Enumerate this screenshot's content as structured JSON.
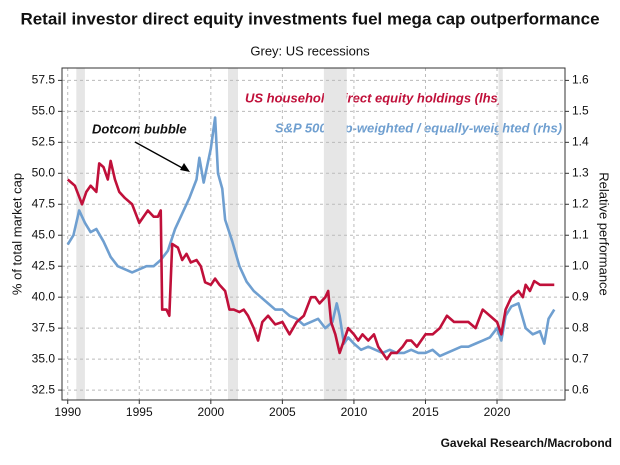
{
  "chart_data": {
    "type": "line",
    "title": "Retail investor direct equity investments fuel mega cap outperformance",
    "subtitle": "Grey: US recessions",
    "source": "Gavekal Research/Macrobond",
    "ylabel": "% of total market cap",
    "y2label": "Relative performance",
    "annotations": [
      {
        "text": "Dotcom bubble"
      }
    ],
    "grid": true,
    "recession_color": "#e6e6e6",
    "recessions": [
      [
        1990.6,
        1991.2
      ],
      [
        2001.2,
        2001.9
      ],
      [
        2007.9,
        2009.5
      ],
      [
        2020.1,
        2020.4
      ]
    ],
    "xlim": [
      1989.6,
      2024.75
    ],
    "xticks": [
      1990,
      1995,
      2000,
      2005,
      2010,
      2015,
      2020
    ],
    "ylim": [
      31.7,
      58.5
    ],
    "yticks": [
      {
        "value": 32.5,
        "label": "32.5"
      },
      {
        "value": 35,
        "label": "35.0"
      },
      37.5,
      {
        "value": 40,
        "label": "40.0"
      },
      42.5,
      {
        "value": 45,
        "label": "45.0"
      },
      47.5,
      {
        "value": 50,
        "label": "50.0"
      },
      52.5,
      {
        "value": 55,
        "label": "55.0"
      },
      57.5
    ],
    "y2lim": [
      0.568,
      1.64
    ],
    "y2ticks": [
      0.6,
      0.7,
      0.8,
      0.9,
      {
        "value": 1,
        "label": "1.0"
      },
      1.1,
      1.2,
      1.3,
      1.4,
      1.5,
      1.6
    ],
    "series": [
      {
        "name": "US household direct equity holdings (lhs)",
        "color": "#c0103a",
        "axis": "y",
        "x": [
          1990,
          1990.5,
          1991,
          1991.3,
          1991.6,
          1992,
          1992.2,
          1992.5,
          1992.8,
          1993,
          1993.3,
          1993.6,
          1994,
          1994.5,
          1995,
          1995.3,
          1995.6,
          1996,
          1996.3,
          1996.5,
          1996.6,
          1996.9,
          1997.1,
          1997.3,
          1997.7,
          1998,
          1998.3,
          1998.6,
          1999,
          1999.3,
          1999.6,
          2000,
          2000.3,
          2000.6,
          2001,
          2001.3,
          2001.6,
          2002,
          2002.3,
          2002.6,
          2003,
          2003.3,
          2003.6,
          2004,
          2004.5,
          2005,
          2005.5,
          2006,
          2006.5,
          2007,
          2007.3,
          2007.6,
          2008,
          2008.2,
          2008.4,
          2008.7,
          2009,
          2009.3,
          2009.6,
          2010,
          2010.3,
          2010.6,
          2011,
          2011.4,
          2011.7,
          2012,
          2012.3,
          2012.6,
          2013,
          2013.4,
          2013.7,
          2014,
          2014.4,
          2014.7,
          2015,
          2015.5,
          2016,
          2016.5,
          2017,
          2017.5,
          2018,
          2018.5,
          2019,
          2019.5,
          2020,
          2020.3,
          2020.6,
          2021,
          2021.5,
          2021.8,
          2022,
          2022.3,
          2022.6,
          2023,
          2023.5,
          2024
        ],
        "values": [
          49.5,
          49,
          47.5,
          48.5,
          49,
          48.5,
          50.8,
          50.5,
          49.5,
          51,
          49.5,
          48.5,
          48,
          47.5,
          46,
          46.5,
          47,
          46.5,
          46.5,
          47,
          39,
          39,
          38.5,
          44.3,
          44,
          43,
          43.5,
          42.8,
          43,
          42.5,
          41.2,
          41,
          41.5,
          41,
          40.5,
          39,
          39,
          38.8,
          39,
          38.5,
          37.5,
          36.5,
          38,
          38.5,
          37.8,
          38,
          37,
          38,
          38.5,
          40,
          40,
          39.5,
          40,
          40.5,
          38,
          37,
          35.5,
          36.5,
          37.5,
          37,
          36.5,
          37,
          36.5,
          37,
          36,
          35.5,
          35,
          35.5,
          35.5,
          36,
          36.5,
          36.5,
          36,
          36.5,
          37,
          37,
          37.5,
          38.5,
          38,
          38,
          38,
          37.5,
          39,
          38.5,
          38,
          37,
          39,
          40,
          40.5,
          40,
          41,
          40.5,
          41.3,
          41,
          41,
          41
        ]
      },
      {
        "name": "S&P 500 cap-weighted / equally-weighted (rhs)",
        "color": "#6f9fd0",
        "axis": "y2",
        "x": [
          1990,
          1990.4,
          1990.8,
          1991.2,
          1991.6,
          1992,
          1992.5,
          1993,
          1993.5,
          1994,
          1994.5,
          1995,
          1995.5,
          1996,
          1996.5,
          1997,
          1997.5,
          1998,
          1998.5,
          1999,
          1999.2,
          1999.5,
          2000,
          2000.3,
          2000.5,
          2000.8,
          2001,
          2001.5,
          2002,
          2002.5,
          2003,
          2003.5,
          2004,
          2004.5,
          2005,
          2005.5,
          2006,
          2006.5,
          2007,
          2007.5,
          2008,
          2008.5,
          2008.8,
          2009,
          2009.3,
          2009.6,
          2010,
          2010.5,
          2011,
          2011.5,
          2012,
          2012.5,
          2013,
          2013.5,
          2014,
          2014.5,
          2015,
          2015.5,
          2016,
          2016.5,
          2017,
          2017.5,
          2018,
          2018.5,
          2019,
          2019.5,
          2020,
          2020.3,
          2020.6,
          2021,
          2021.5,
          2022,
          2022.5,
          2023,
          2023.3,
          2023.6,
          2024
        ],
        "values": [
          1.07,
          1.1,
          1.18,
          1.14,
          1.11,
          1.12,
          1.08,
          1.03,
          1.0,
          0.99,
          0.98,
          0.99,
          1.0,
          1.0,
          1.02,
          1.05,
          1.12,
          1.17,
          1.22,
          1.28,
          1.35,
          1.27,
          1.38,
          1.48,
          1.3,
          1.25,
          1.15,
          1.08,
          1.0,
          0.95,
          0.92,
          0.9,
          0.88,
          0.86,
          0.86,
          0.84,
          0.83,
          0.81,
          0.82,
          0.83,
          0.8,
          0.82,
          0.88,
          0.84,
          0.75,
          0.77,
          0.75,
          0.73,
          0.74,
          0.73,
          0.72,
          0.73,
          0.72,
          0.72,
          0.73,
          0.72,
          0.72,
          0.73,
          0.71,
          0.72,
          0.73,
          0.74,
          0.74,
          0.75,
          0.76,
          0.77,
          0.8,
          0.76,
          0.84,
          0.87,
          0.88,
          0.8,
          0.78,
          0.79,
          0.75,
          0.83,
          0.86
        ]
      }
    ]
  }
}
